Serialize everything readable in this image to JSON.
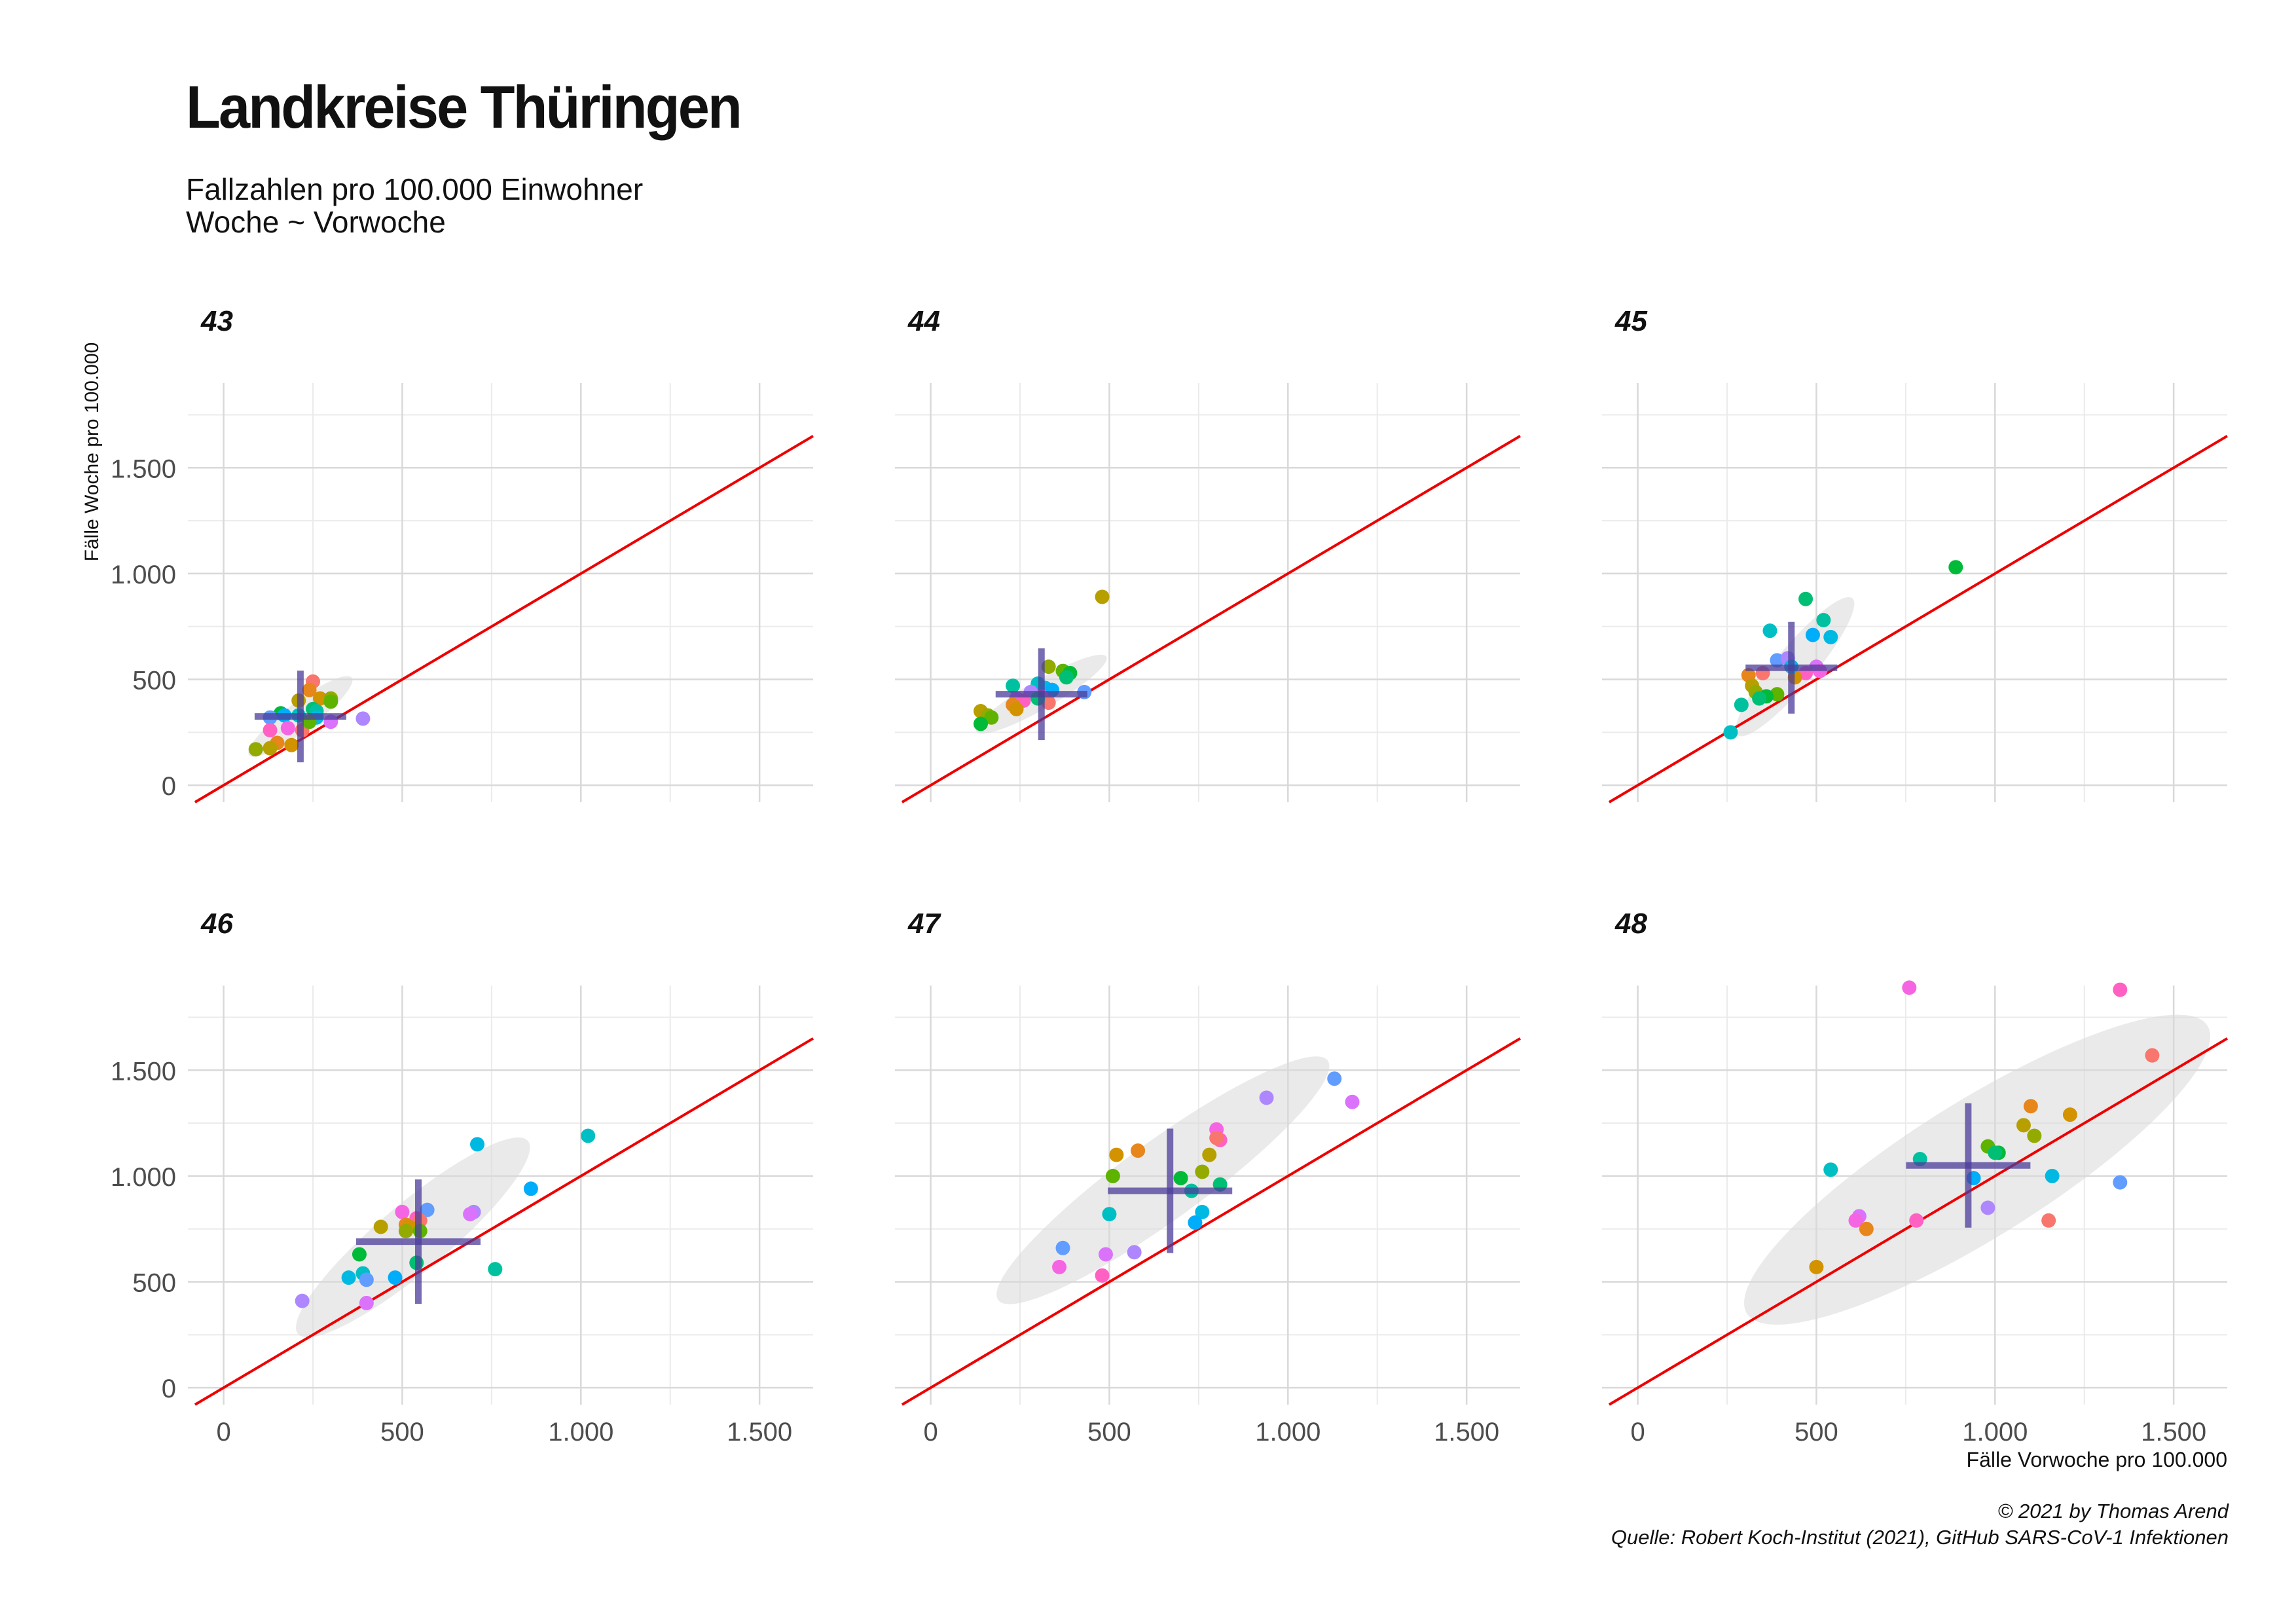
{
  "header": {
    "title": "Landkreise Thüringen",
    "subtitle_line1": "Fallzahlen pro 100.000 Einwohner",
    "subtitle_line2": "Woche ~ Vorwoche"
  },
  "caption": {
    "credit": "© 2021 by Thomas Arend",
    "source": "Quelle: Robert Koch-Institut (2021), GitHub SARS-CoV-1 Infektionen"
  },
  "colors": {
    "reference_line": "#ee0000",
    "mean_cross": "#4b3c9a",
    "ellipse_fill": "#d9d9d9",
    "grid": "#d9d9d9",
    "palette": [
      "#f8766d",
      "#e7861b",
      "#d39200",
      "#b79f00",
      "#93aa00",
      "#5eb300",
      "#00ba38",
      "#00bf74",
      "#00c19f",
      "#00bfc4",
      "#00b9e3",
      "#00adfa",
      "#619cff",
      "#ae87ff",
      "#db72fb",
      "#f564e3",
      "#ff61c3"
    ]
  },
  "chart_data": {
    "type": "scatter",
    "facets": [
      "43",
      "44",
      "45",
      "46",
      "47",
      "48"
    ],
    "layout": "2 rows x 3 columns, shared axes",
    "xlabel": "Fälle Vorwoche pro 100.000",
    "ylabel": "Fälle Woche pro 100.000",
    "xlim": [
      -100,
      1650
    ],
    "ylim": [
      -80,
      1900
    ],
    "x_ticks": [
      0,
      500,
      1000,
      1500
    ],
    "x_tick_labels": [
      "0",
      "500",
      "1.000",
      "1.500"
    ],
    "y_ticks": [
      0,
      500,
      1000,
      1500
    ],
    "y_tick_labels": [
      "0",
      "500",
      "1.000",
      "1.500"
    ],
    "grid": true,
    "legend": "none",
    "reference_line": "y = x",
    "panels": [
      {
        "week": "43",
        "mean": [
          215,
          325
        ],
        "ellipse": {
          "cx": 215,
          "cy": 325,
          "rx": 180,
          "ry": 40,
          "angle_deg": 37
        },
        "points": [
          {
            "x": 250,
            "y": 490
          },
          {
            "x": 240,
            "y": 450
          },
          {
            "x": 270,
            "y": 410
          },
          {
            "x": 210,
            "y": 400
          },
          {
            "x": 300,
            "y": 410
          },
          {
            "x": 300,
            "y": 395
          },
          {
            "x": 160,
            "y": 340
          },
          {
            "x": 250,
            "y": 360
          },
          {
            "x": 260,
            "y": 350
          },
          {
            "x": 210,
            "y": 330
          },
          {
            "x": 260,
            "y": 320
          },
          {
            "x": 170,
            "y": 330
          },
          {
            "x": 130,
            "y": 320
          },
          {
            "x": 390,
            "y": 315
          },
          {
            "x": 300,
            "y": 300
          },
          {
            "x": 180,
            "y": 270
          },
          {
            "x": 130,
            "y": 260
          },
          {
            "x": 220,
            "y": 260
          },
          {
            "x": 150,
            "y": 200
          },
          {
            "x": 190,
            "y": 190
          },
          {
            "x": 130,
            "y": 175
          },
          {
            "x": 90,
            "y": 170
          },
          {
            "x": 240,
            "y": 300
          }
        ]
      },
      {
        "week": "44",
        "mean": [
          310,
          430
        ],
        "ellipse": {
          "cx": 310,
          "cy": 430,
          "rx": 210,
          "ry": 40,
          "angle_deg": 30
        },
        "points": [
          {
            "x": 480,
            "y": 890
          },
          {
            "x": 330,
            "y": 560
          },
          {
            "x": 370,
            "y": 540
          },
          {
            "x": 390,
            "y": 530
          },
          {
            "x": 380,
            "y": 510
          },
          {
            "x": 230,
            "y": 470
          },
          {
            "x": 300,
            "y": 480
          },
          {
            "x": 320,
            "y": 460
          },
          {
            "x": 340,
            "y": 450
          },
          {
            "x": 430,
            "y": 440
          },
          {
            "x": 280,
            "y": 440
          },
          {
            "x": 240,
            "y": 410
          },
          {
            "x": 310,
            "y": 420
          },
          {
            "x": 260,
            "y": 400
          },
          {
            "x": 330,
            "y": 390
          },
          {
            "x": 230,
            "y": 380
          },
          {
            "x": 240,
            "y": 360
          },
          {
            "x": 140,
            "y": 350
          },
          {
            "x": 160,
            "y": 330
          },
          {
            "x": 170,
            "y": 320
          },
          {
            "x": 140,
            "y": 290
          },
          {
            "x": 300,
            "y": 410
          }
        ]
      },
      {
        "week": "45",
        "mean": [
          430,
          555
        ],
        "ellipse": {
          "cx": 440,
          "cy": 560,
          "rx": 250,
          "ry": 55,
          "angle_deg": 50
        },
        "points": [
          {
            "x": 890,
            "y": 1030
          },
          {
            "x": 470,
            "y": 880
          },
          {
            "x": 520,
            "y": 780
          },
          {
            "x": 370,
            "y": 730
          },
          {
            "x": 540,
            "y": 700
          },
          {
            "x": 490,
            "y": 710
          },
          {
            "x": 390,
            "y": 590
          },
          {
            "x": 420,
            "y": 600
          },
          {
            "x": 500,
            "y": 560
          },
          {
            "x": 510,
            "y": 540
          },
          {
            "x": 470,
            "y": 530
          },
          {
            "x": 350,
            "y": 530
          },
          {
            "x": 310,
            "y": 520
          },
          {
            "x": 440,
            "y": 510
          },
          {
            "x": 320,
            "y": 470
          },
          {
            "x": 330,
            "y": 440
          },
          {
            "x": 390,
            "y": 430
          },
          {
            "x": 360,
            "y": 420
          },
          {
            "x": 340,
            "y": 410
          },
          {
            "x": 290,
            "y": 380
          },
          {
            "x": 260,
            "y": 250
          },
          {
            "x": 430,
            "y": 560
          }
        ]
      },
      {
        "week": "46",
        "mean": [
          545,
          690
        ],
        "ellipse": {
          "cx": 530,
          "cy": 710,
          "rx": 420,
          "ry": 95,
          "angle_deg": 40
        },
        "points": [
          {
            "x": 1020,
            "y": 1190
          },
          {
            "x": 710,
            "y": 1150
          },
          {
            "x": 860,
            "y": 940
          },
          {
            "x": 570,
            "y": 840
          },
          {
            "x": 700,
            "y": 830
          },
          {
            "x": 690,
            "y": 820
          },
          {
            "x": 500,
            "y": 830
          },
          {
            "x": 540,
            "y": 800
          },
          {
            "x": 550,
            "y": 790
          },
          {
            "x": 510,
            "y": 770
          },
          {
            "x": 520,
            "y": 760
          },
          {
            "x": 440,
            "y": 760
          },
          {
            "x": 510,
            "y": 740
          },
          {
            "x": 550,
            "y": 740
          },
          {
            "x": 380,
            "y": 630
          },
          {
            "x": 540,
            "y": 590
          },
          {
            "x": 760,
            "y": 560
          },
          {
            "x": 390,
            "y": 540
          },
          {
            "x": 350,
            "y": 520
          },
          {
            "x": 480,
            "y": 520
          },
          {
            "x": 400,
            "y": 510
          },
          {
            "x": 220,
            "y": 410
          },
          {
            "x": 400,
            "y": 400
          }
        ]
      },
      {
        "week": "47",
        "mean": [
          670,
          930
        ],
        "ellipse": {
          "cx": 650,
          "cy": 980,
          "rx": 570,
          "ry": 110,
          "angle_deg": 36
        },
        "points": [
          {
            "x": 1130,
            "y": 1460
          },
          {
            "x": 940,
            "y": 1370
          },
          {
            "x": 1180,
            "y": 1350
          },
          {
            "x": 800,
            "y": 1220
          },
          {
            "x": 810,
            "y": 1170
          },
          {
            "x": 800,
            "y": 1180
          },
          {
            "x": 580,
            "y": 1120
          },
          {
            "x": 520,
            "y": 1100
          },
          {
            "x": 780,
            "y": 1100
          },
          {
            "x": 760,
            "y": 1020
          },
          {
            "x": 510,
            "y": 1000
          },
          {
            "x": 700,
            "y": 990
          },
          {
            "x": 810,
            "y": 960
          },
          {
            "x": 730,
            "y": 930
          },
          {
            "x": 500,
            "y": 820
          },
          {
            "x": 760,
            "y": 830
          },
          {
            "x": 740,
            "y": 780
          },
          {
            "x": 370,
            "y": 660
          },
          {
            "x": 570,
            "y": 640
          },
          {
            "x": 490,
            "y": 630
          },
          {
            "x": 360,
            "y": 570
          },
          {
            "x": 480,
            "y": 530
          }
        ]
      },
      {
        "week": "48",
        "mean": [
          925,
          1050
        ],
        "ellipse": {
          "cx": 950,
          "cy": 1030,
          "rx": 760,
          "ry": 190,
          "angle_deg": 32
        },
        "points": [
          {
            "x": 760,
            "y": 1890
          },
          {
            "x": 1350,
            "y": 1880
          },
          {
            "x": 1440,
            "y": 1570
          },
          {
            "x": 1100,
            "y": 1330
          },
          {
            "x": 1210,
            "y": 1290
          },
          {
            "x": 1080,
            "y": 1240
          },
          {
            "x": 1110,
            "y": 1190
          },
          {
            "x": 980,
            "y": 1140
          },
          {
            "x": 1010,
            "y": 1110
          },
          {
            "x": 1000,
            "y": 1110
          },
          {
            "x": 790,
            "y": 1080
          },
          {
            "x": 540,
            "y": 1030
          },
          {
            "x": 1160,
            "y": 1000
          },
          {
            "x": 940,
            "y": 990
          },
          {
            "x": 1350,
            "y": 970
          },
          {
            "x": 980,
            "y": 850
          },
          {
            "x": 620,
            "y": 810
          },
          {
            "x": 610,
            "y": 790
          },
          {
            "x": 780,
            "y": 790
          },
          {
            "x": 1150,
            "y": 790
          },
          {
            "x": 640,
            "y": 750
          },
          {
            "x": 500,
            "y": 570
          }
        ]
      }
    ]
  }
}
